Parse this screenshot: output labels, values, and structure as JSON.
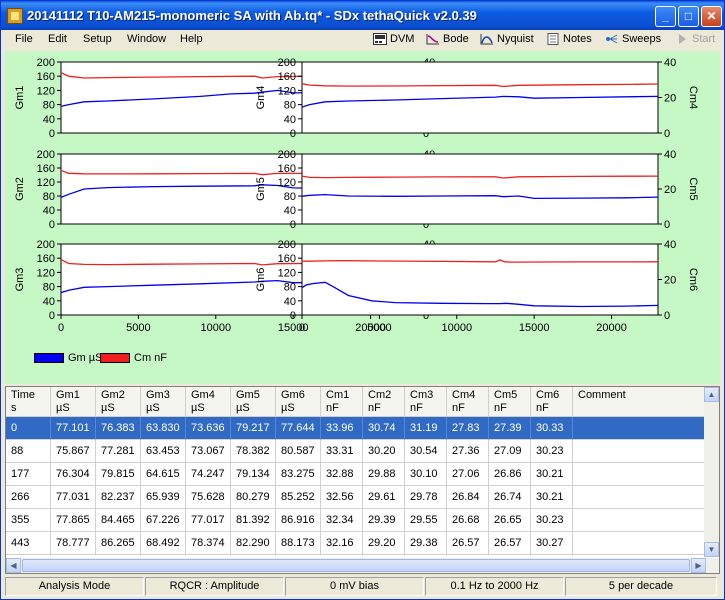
{
  "window": {
    "title": "20141112 T10-AM215-monomeric SA with Ab.tq* - SDx tethaQuick v2.0.39",
    "controls": {
      "minimize": "_",
      "maximize": "□",
      "close": "✕"
    }
  },
  "menu": [
    "File",
    "Edit",
    "Setup",
    "Window",
    "Help"
  ],
  "toolbar": [
    {
      "label": "DVM",
      "icon": "dvm-icon",
      "enabled": true
    },
    {
      "label": "Bode",
      "icon": "bode-plot-icon",
      "enabled": true
    },
    {
      "label": "Nyquist",
      "icon": "nyquist-plot-icon",
      "enabled": true
    },
    {
      "label": "Notes",
      "icon": "notes-icon",
      "enabled": true
    },
    {
      "label": "Sweeps",
      "icon": "sweeps-icon",
      "enabled": true
    },
    {
      "label": "Start",
      "icon": "play-icon",
      "enabled": false
    }
  ],
  "colors": {
    "gm": "#0000ee",
    "cm": "#ee2020",
    "plot_bg": "#c6f8c6",
    "selection": "#316ac5"
  },
  "legend": {
    "gm": "Gm µS",
    "cm": "Cm nF"
  },
  "chart_data": [
    {
      "type": "line",
      "ylabel_left": "Gm1",
      "ylabel_right": "Cm1",
      "xlim": [
        0,
        23000
      ],
      "ylim_left": [
        0,
        200
      ],
      "ylim_right": [
        0,
        40
      ],
      "left_ticks": [
        "0",
        "40",
        "80",
        "120",
        "160",
        "200"
      ],
      "right_ticks": [
        "0",
        "20",
        "40"
      ],
      "x_ticks": [],
      "series": [
        {
          "name": "Gm µS",
          "axis": "left",
          "x": [
            0,
            500,
            1500,
            3000,
            6000,
            9000,
            11000,
            12500,
            13000,
            14000,
            15000,
            18000,
            21000,
            23000
          ],
          "y": [
            75,
            80,
            88,
            90,
            96,
            103,
            110,
            112,
            115,
            120,
            113,
            114,
            116,
            118
          ]
        },
        {
          "name": "Cm nF",
          "axis": "right",
          "x": [
            0,
            500,
            1500,
            3000,
            6000,
            9000,
            12500,
            13000,
            14000,
            18000,
            21000,
            23000
          ],
          "y": [
            34,
            32,
            31,
            31.2,
            31.5,
            31.8,
            32,
            31,
            31.8,
            32.3,
            32.6,
            32.8
          ]
        }
      ]
    },
    {
      "type": "line",
      "ylabel_left": "Gm4",
      "ylabel_right": "Cm4",
      "xlim": [
        0,
        23000
      ],
      "ylim_left": [
        0,
        200
      ],
      "ylim_right": [
        0,
        40
      ],
      "left_ticks": [
        "0",
        "40",
        "80",
        "120",
        "160",
        "200"
      ],
      "right_ticks": [
        "0",
        "20",
        "40"
      ],
      "x_ticks": [],
      "series": [
        {
          "name": "Gm µS",
          "axis": "left",
          "x": [
            0,
            500,
            1500,
            3000,
            6000,
            9000,
            12500,
            13000,
            14000,
            15000,
            18000,
            21000,
            23000
          ],
          "y": [
            73,
            80,
            88,
            90,
            93,
            97,
            101,
            103,
            102,
            98,
            100,
            102,
            103
          ]
        },
        {
          "name": "Cm nF",
          "axis": "right",
          "x": [
            0,
            500,
            1500,
            3000,
            6000,
            9000,
            12500,
            13000,
            14000,
            18000,
            21000,
            23000
          ],
          "y": [
            27.8,
            27,
            26.6,
            26.4,
            26.5,
            26.7,
            26.9,
            26.2,
            26.9,
            27.2,
            27.4,
            27.6
          ]
        }
      ]
    },
    {
      "type": "line",
      "ylabel_left": "Gm2",
      "ylabel_right": "Cm2",
      "xlim": [
        0,
        23000
      ],
      "ylim_left": [
        0,
        200
      ],
      "ylim_right": [
        0,
        40
      ],
      "left_ticks": [
        "0",
        "40",
        "80",
        "120",
        "160",
        "200"
      ],
      "right_ticks": [
        "0",
        "20",
        "40"
      ],
      "x_ticks": [],
      "series": [
        {
          "name": "Gm µS",
          "axis": "left",
          "x": [
            0,
            500,
            1500,
            3000,
            6000,
            9000,
            12500,
            13000,
            14000,
            15000,
            18000,
            21000,
            23000
          ],
          "y": [
            76,
            85,
            100,
            104,
            107,
            108,
            109,
            112,
            110,
            103,
            101,
            102,
            103
          ]
        },
        {
          "name": "Cm nF",
          "axis": "right",
          "x": [
            0,
            500,
            1500,
            3000,
            6000,
            9000,
            12500,
            13000,
            14000,
            18000,
            21000,
            23000
          ],
          "y": [
            30.7,
            29,
            28.7,
            28.6,
            28.7,
            28.8,
            28.9,
            28.2,
            28.9,
            29,
            29.1,
            29.2
          ]
        }
      ]
    },
    {
      "type": "line",
      "ylabel_left": "Gm5",
      "ylabel_right": "Cm5",
      "xlim": [
        0,
        23000
      ],
      "ylim_left": [
        0,
        200
      ],
      "ylim_right": [
        0,
        40
      ],
      "left_ticks": [
        "0",
        "40",
        "80",
        "120",
        "160",
        "200"
      ],
      "right_ticks": [
        "0",
        "20",
        "40"
      ],
      "x_ticks": [],
      "series": [
        {
          "name": "Gm µS",
          "axis": "left",
          "x": [
            0,
            500,
            1500,
            3000,
            6000,
            9000,
            12500,
            13000,
            14000,
            15000,
            18000,
            21000,
            23000
          ],
          "y": [
            79,
            82,
            84,
            80,
            79,
            80,
            81,
            78,
            80,
            73,
            74,
            75,
            77
          ]
        },
        {
          "name": "Cm nF",
          "axis": "right",
          "x": [
            0,
            500,
            1500,
            3000,
            6000,
            9000,
            12500,
            13000,
            14000,
            18000,
            21000,
            23000
          ],
          "y": [
            27.4,
            26.6,
            26.5,
            26.6,
            26.8,
            26.9,
            27,
            26.3,
            27,
            27.2,
            27.3,
            27.4
          ]
        }
      ]
    },
    {
      "type": "line",
      "ylabel_left": "Gm3",
      "ylabel_right": "Cm3",
      "xlim": [
        0,
        23000
      ],
      "ylim_left": [
        0,
        200
      ],
      "ylim_right": [
        0,
        40
      ],
      "left_ticks": [
        "0",
        "40",
        "80",
        "120",
        "160",
        "200"
      ],
      "right_ticks": [
        "0",
        "20",
        "40"
      ],
      "x_ticks": [
        "0",
        "5000",
        "10000",
        "15000",
        "20000"
      ],
      "x_tick_values": [
        0,
        5000,
        10000,
        15000,
        20000
      ],
      "series": [
        {
          "name": "Gm µS",
          "axis": "left",
          "x": [
            0,
            500,
            1500,
            3000,
            6000,
            9000,
            12500,
            13000,
            14000,
            15000,
            18000,
            21000,
            23000
          ],
          "y": [
            63,
            70,
            78,
            80,
            84,
            88,
            93,
            95,
            97,
            91,
            92,
            94,
            96
          ]
        },
        {
          "name": "Cm nF",
          "axis": "right",
          "x": [
            0,
            500,
            1500,
            3000,
            6000,
            9000,
            12500,
            13000,
            14000,
            18000,
            21000,
            23000
          ],
          "y": [
            31.2,
            29,
            28.5,
            28.4,
            28.6,
            28.8,
            29,
            28.2,
            28.9,
            29.2,
            29.4,
            29.6
          ]
        }
      ]
    },
    {
      "type": "line",
      "ylabel_left": "Gm6",
      "ylabel_right": "Cm6",
      "xlim": [
        0,
        23000
      ],
      "ylim_left": [
        0,
        200
      ],
      "ylim_right": [
        0,
        40
      ],
      "left_ticks": [
        "0",
        "40",
        "80",
        "120",
        "160",
        "200"
      ],
      "right_ticks": [
        "0",
        "20",
        "40"
      ],
      "x_ticks": [
        "0",
        "5000",
        "10000",
        "15000",
        "20000"
      ],
      "x_tick_values": [
        0,
        5000,
        10000,
        15000,
        20000
      ],
      "series": [
        {
          "name": "Gm µS",
          "axis": "left",
          "x": [
            0,
            300,
            800,
            1500,
            2000,
            3000,
            4500,
            6000,
            9000,
            12000,
            12800,
            13200,
            14000,
            15000,
            18000,
            21000,
            23000
          ],
          "y": [
            77,
            85,
            89,
            92,
            80,
            55,
            40,
            35,
            33,
            32,
            32,
            33,
            30,
            26,
            24,
            25,
            27
          ]
        },
        {
          "name": "Cm nF",
          "axis": "right",
          "x": [
            0,
            500,
            1500,
            2500,
            5000,
            9000,
            12500,
            12800,
            13100,
            13500,
            18000,
            21000,
            23000
          ],
          "y": [
            30.3,
            30.3,
            30.5,
            30.6,
            30.4,
            30.2,
            30,
            31,
            30,
            29.8,
            29.9,
            29.9,
            30
          ]
        }
      ]
    }
  ],
  "table": {
    "headers": [
      {
        "name": "Time",
        "unit": "s"
      },
      {
        "name": "Gm1",
        "unit": "µS"
      },
      {
        "name": "Gm2",
        "unit": "µS"
      },
      {
        "name": "Gm3",
        "unit": "µS"
      },
      {
        "name": "Gm4",
        "unit": "µS"
      },
      {
        "name": "Gm5",
        "unit": "µS"
      },
      {
        "name": "Gm6",
        "unit": "µS"
      },
      {
        "name": "Cm1",
        "unit": "nF"
      },
      {
        "name": "Cm2",
        "unit": "nF"
      },
      {
        "name": "Cm3",
        "unit": "nF"
      },
      {
        "name": "Cm4",
        "unit": "nF"
      },
      {
        "name": "Cm5",
        "unit": "nF"
      },
      {
        "name": "Cm6",
        "unit": "nF"
      },
      {
        "name": "Comment",
        "unit": ""
      }
    ],
    "rows": [
      [
        "0",
        "77.101",
        "76.383",
        "63.830",
        "73.636",
        "79.217",
        "77.644",
        "33.96",
        "30.74",
        "31.19",
        "27.83",
        "27.39",
        "30.33",
        ""
      ],
      [
        "88",
        "75.867",
        "77.281",
        "63.453",
        "73.067",
        "78.382",
        "80.587",
        "33.31",
        "30.20",
        "30.54",
        "27.36",
        "27.09",
        "30.23",
        ""
      ],
      [
        "177",
        "76.304",
        "79.815",
        "64.615",
        "74.247",
        "79.134",
        "83.275",
        "32.88",
        "29.88",
        "30.10",
        "27.06",
        "26.86",
        "30.21",
        ""
      ],
      [
        "266",
        "77.031",
        "82.237",
        "65.939",
        "75.628",
        "80.279",
        "85.252",
        "32.56",
        "29.61",
        "29.78",
        "26.84",
        "26.74",
        "30.21",
        ""
      ],
      [
        "355",
        "77.865",
        "84.465",
        "67.226",
        "77.017",
        "81.392",
        "86.916",
        "32.34",
        "29.39",
        "29.55",
        "26.68",
        "26.65",
        "30.23",
        ""
      ],
      [
        "443",
        "78.777",
        "86.265",
        "68.492",
        "78.374",
        "82.290",
        "88.173",
        "32.16",
        "29.20",
        "29.38",
        "26.57",
        "26.57",
        "30.27",
        ""
      ]
    ],
    "selected_row": 0
  },
  "status": [
    "Analysis Mode",
    "RQCR : Amplitude",
    "0 mV bias",
    "0.1 Hz to 2000 Hz",
    "5 per decade"
  ]
}
